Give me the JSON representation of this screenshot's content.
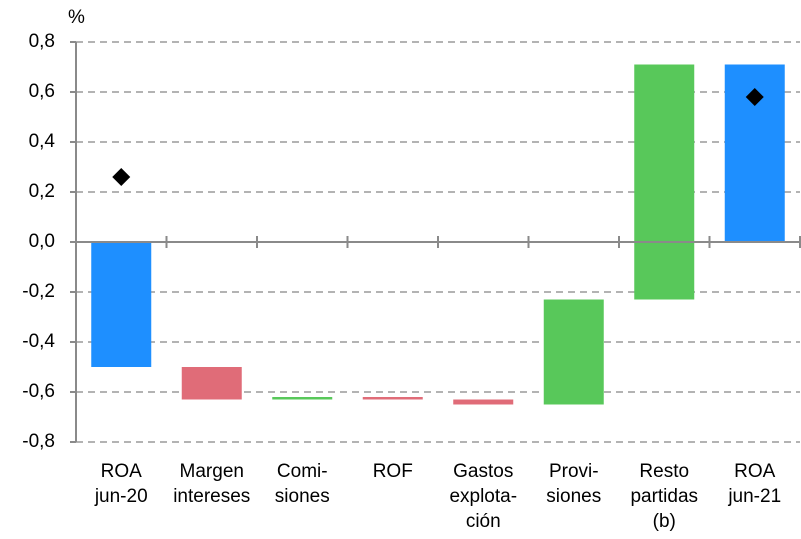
{
  "chart_data": {
    "type": "waterfall",
    "y_unit": "%",
    "categories": [
      [
        "ROA",
        "jun-20"
      ],
      [
        "Margen",
        "intereses"
      ],
      [
        "Comi-",
        "siones"
      ],
      [
        "ROF"
      ],
      [
        "Gastos",
        "explota-",
        "ción"
      ],
      [
        "Provi-",
        "siones"
      ],
      [
        "Resto",
        "partidas",
        "(b)"
      ],
      [
        "ROA",
        "jun-21"
      ]
    ],
    "values": [
      -0.5,
      -0.13,
      0.01,
      -0.01,
      -0.02,
      0.42,
      0.94,
      0.71
    ],
    "is_total": [
      true,
      false,
      false,
      false,
      false,
      false,
      false,
      true
    ],
    "colors": [
      "#1e8fff",
      "#e06c78",
      "#58c85a",
      "#e06c78",
      "#e06c78",
      "#58c85a",
      "#58c85a",
      "#1e8fff"
    ],
    "diamonds": [
      0.26,
      null,
      null,
      null,
      null,
      null,
      null,
      0.58
    ],
    "diamond_color": "#000000",
    "ylim": [
      -0.8,
      0.8
    ],
    "yticks": [
      {
        "value": 0.8,
        "label": "0,8"
      },
      {
        "value": 0.6,
        "label": "0,6"
      },
      {
        "value": 0.4,
        "label": "0,4"
      },
      {
        "value": 0.2,
        "label": "0,2"
      },
      {
        "value": 0,
        "label": "0,0"
      },
      {
        "value": -0.2,
        "label": "-0,2"
      },
      {
        "value": -0.4,
        "label": "-0,4"
      },
      {
        "value": -0.6,
        "label": "-0,6"
      },
      {
        "value": -0.8,
        "label": "-0,8"
      }
    ],
    "grid": true
  }
}
